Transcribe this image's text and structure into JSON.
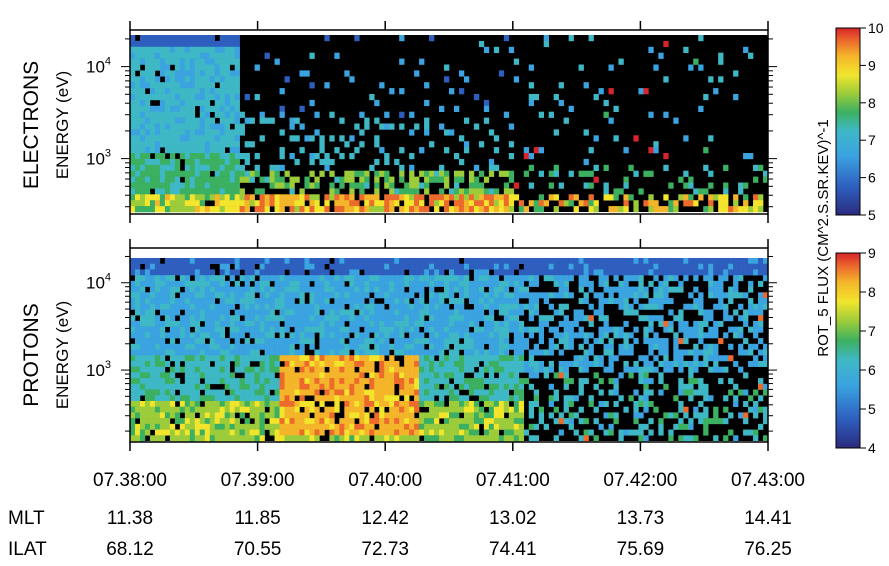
{
  "chart_data": [
    {
      "type": "heatmap",
      "panel_label": "ELECTRONS",
      "ylabel": "ENERGY (eV)",
      "yscale": "log",
      "ylim": [
        250,
        25000
      ],
      "y_ticks": [
        {
          "value": 10000,
          "base": "10",
          "exp": "4"
        },
        {
          "value": 1000,
          "base": "10",
          "exp": "3"
        }
      ],
      "colorbar": {
        "min": 5,
        "max": 10,
        "ticks": [
          "5",
          "6",
          "7",
          "8",
          "9",
          "10"
        ]
      },
      "description_of_pattern": ""
    },
    {
      "type": "heatmap",
      "panel_label": "PROTONS",
      "ylabel": "ENERGY (eV)",
      "yscale": "log",
      "ylim": [
        150,
        25000
      ],
      "y_ticks": [
        {
          "value": 10000,
          "base": "10",
          "exp": "4"
        },
        {
          "value": 1000,
          "base": "10",
          "exp": "3"
        }
      ],
      "colorbar": {
        "min": 4,
        "max": 9,
        "ticks": [
          "4",
          "5",
          "6",
          "7",
          "8",
          "9"
        ]
      }
    }
  ],
  "x_axis": {
    "ticks": [
      "07.38:00",
      "07.39:00",
      "07.40:00",
      "07.41:00",
      "07.42:00",
      "07.43:00"
    ]
  },
  "colorbar_label": "ROT_5  FLUX (CM^2.S.SR.KEV)^-1",
  "ephemeris": [
    {
      "label": "MLT",
      "values": [
        "11.38",
        "11.85",
        "12.42",
        "13.02",
        "13.73",
        "14.41"
      ]
    },
    {
      "label": "ILAT",
      "values": [
        "68.12",
        "70.55",
        "72.73",
        "74.41",
        "75.69",
        "76.25"
      ]
    }
  ],
  "colors": {
    "black": "#000000",
    "scale": [
      "#2b2a7e",
      "#2e5fbf",
      "#3aa3e0",
      "#3fb8c6",
      "#3cb061",
      "#9ccc3a",
      "#f2e52c",
      "#f4b52a",
      "#ec6a2c",
      "#d8242b"
    ]
  }
}
